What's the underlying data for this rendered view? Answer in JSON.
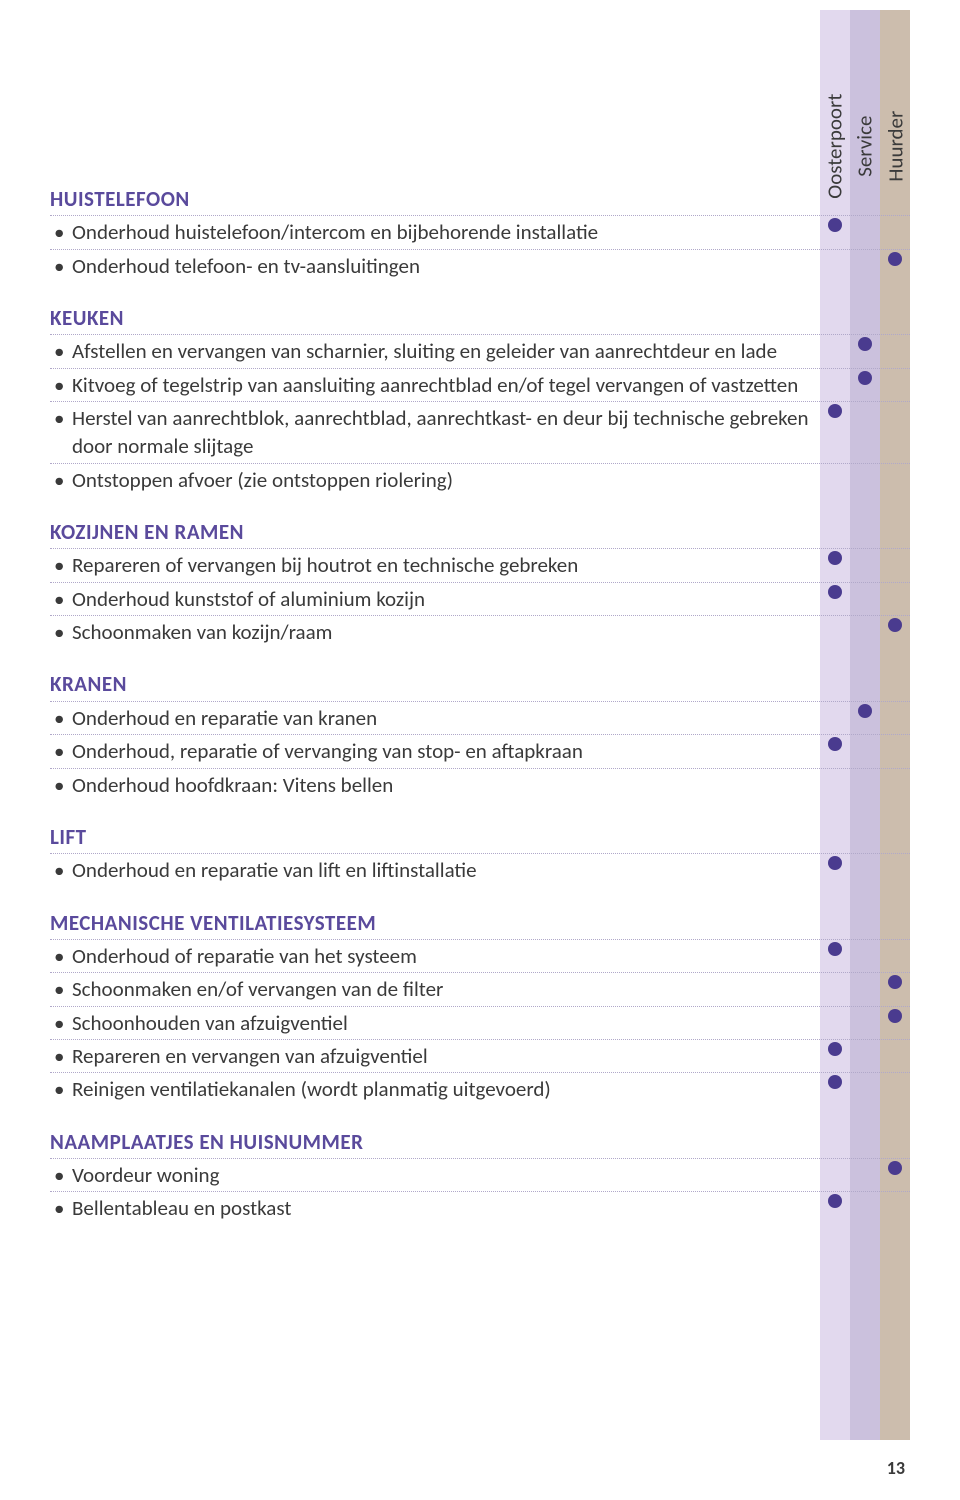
{
  "page_number": "13",
  "columns": {
    "col1": {
      "label": "Oosterpoort",
      "bg": "#e2d9ee"
    },
    "col2": {
      "label": "Service",
      "bg": "#cbc1dd"
    },
    "col3": {
      "label": "Huurder",
      "bg": "#ccbdad"
    }
  },
  "colors": {
    "heading": "#5a4a9c",
    "dot": "#4a3b8f",
    "rule": "#b0a8c9"
  },
  "sections": [
    {
      "title": "HUISTELEFOON",
      "items": [
        {
          "text": "Onderhoud huistelefoon/intercom en bijbehorende installatie",
          "dots": [
            true,
            false,
            false
          ]
        },
        {
          "text": "Onderhoud telefoon- en tv-aansluitingen",
          "dots": [
            false,
            false,
            true
          ]
        }
      ]
    },
    {
      "title": "KEUKEN",
      "items": [
        {
          "text": "Afstellen en vervangen van scharnier, sluiting en geleider van aanrechtdeur en lade",
          "dots": [
            false,
            true,
            false
          ]
        },
        {
          "text": "Kitvoeg of tegelstrip van aansluiting aanrechtblad en/of tegel vervangen of vastzetten",
          "dots": [
            false,
            true,
            false
          ]
        },
        {
          "text": "Herstel van aanrechtblok, aanrechtblad, aanrechtkast- en deur bij technische gebreken door normale slijtage",
          "dots": [
            true,
            false,
            false
          ]
        },
        {
          "text": "Ontstoppen afvoer (zie ontstoppen riolering)",
          "dots": [
            false,
            false,
            false
          ]
        }
      ]
    },
    {
      "title": "KOZIJNEN EN RAMEN",
      "items": [
        {
          "text": "Repareren of vervangen bij houtrot en technische gebreken",
          "dots": [
            true,
            false,
            false
          ]
        },
        {
          "text": "Onderhoud kunststof of aluminium kozijn",
          "dots": [
            true,
            false,
            false
          ]
        },
        {
          "text": "Schoonmaken van kozijn/raam",
          "dots": [
            false,
            false,
            true
          ]
        }
      ]
    },
    {
      "title": "KRANEN",
      "items": [
        {
          "text": "Onderhoud en reparatie van kranen",
          "dots": [
            false,
            true,
            false
          ]
        },
        {
          "text": "Onderhoud, reparatie of vervanging van stop- en aftapkraan",
          "dots": [
            true,
            false,
            false
          ]
        },
        {
          "text": "Onderhoud hoofdkraan: Vitens bellen",
          "dots": [
            false,
            false,
            false
          ]
        }
      ]
    },
    {
      "title": "LIFT",
      "items": [
        {
          "text": "Onderhoud en reparatie van lift en liftinstallatie",
          "dots": [
            true,
            false,
            false
          ]
        }
      ]
    },
    {
      "title": "MECHANISCHE VENTILATIESYSTEEM",
      "items": [
        {
          "text": "Onderhoud of reparatie van het systeem",
          "dots": [
            true,
            false,
            false
          ]
        },
        {
          "text": "Schoonmaken en/of vervangen van de filter",
          "dots": [
            false,
            false,
            true
          ]
        },
        {
          "text": "Schoonhouden van afzuigventiel",
          "dots": [
            false,
            false,
            true
          ]
        },
        {
          "text": "Repareren en vervangen van afzuigventiel",
          "dots": [
            true,
            false,
            false
          ]
        },
        {
          "text": "Reinigen ventilatiekanalen (wordt planmatig uitgevoerd)",
          "dots": [
            true,
            false,
            false
          ]
        }
      ]
    },
    {
      "title": "NAAMPLAATJES EN HUISNUMMER",
      "items": [
        {
          "text": "Voordeur woning",
          "dots": [
            false,
            false,
            true
          ]
        },
        {
          "text": "Bellentableau en postkast",
          "dots": [
            true,
            false,
            false
          ]
        }
      ]
    }
  ]
}
